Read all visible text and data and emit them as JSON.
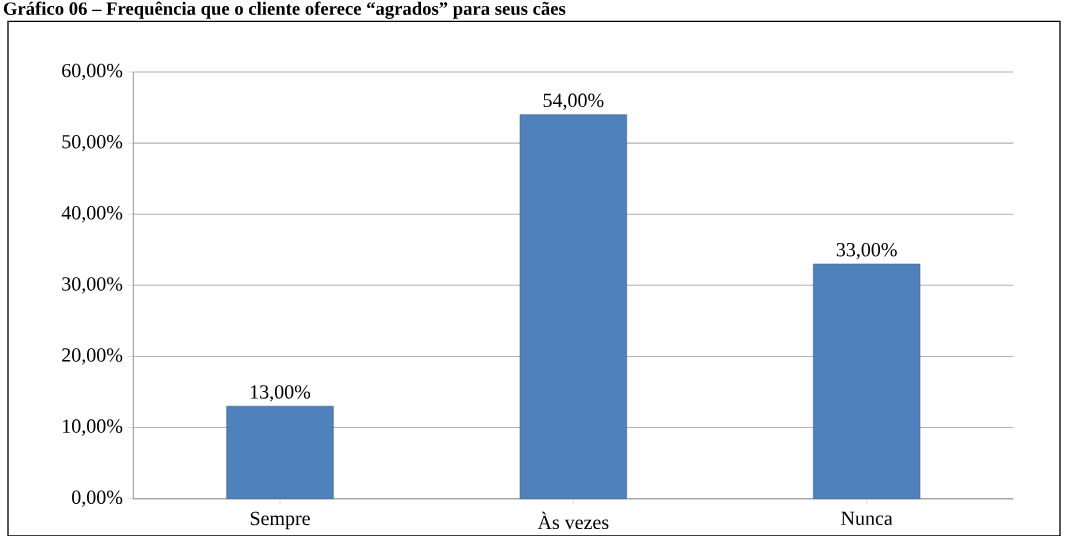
{
  "chart_data": {
    "type": "bar",
    "title": "Gráfico 06 – Frequência que o cliente oferece “agrados” para seus cães",
    "categories": [
      "Sempre",
      "Às vezes",
      "Nunca"
    ],
    "values": [
      13,
      54,
      33
    ],
    "value_labels": [
      "13,00%",
      "54,00%",
      "33,00%"
    ],
    "color": "#4f81bd",
    "ylim": [
      0,
      60
    ],
    "yticks": [
      {
        "value": 0,
        "label": "0,00%"
      },
      {
        "value": 10,
        "label": "10,00%"
      },
      {
        "value": 20,
        "label": "20,00%"
      },
      {
        "value": 30,
        "label": "30,00%"
      },
      {
        "value": 40,
        "label": "40,00%"
      },
      {
        "value": 50,
        "label": "50,00%"
      },
      {
        "value": 60,
        "label": "60,00%"
      }
    ],
    "grid": "y"
  }
}
